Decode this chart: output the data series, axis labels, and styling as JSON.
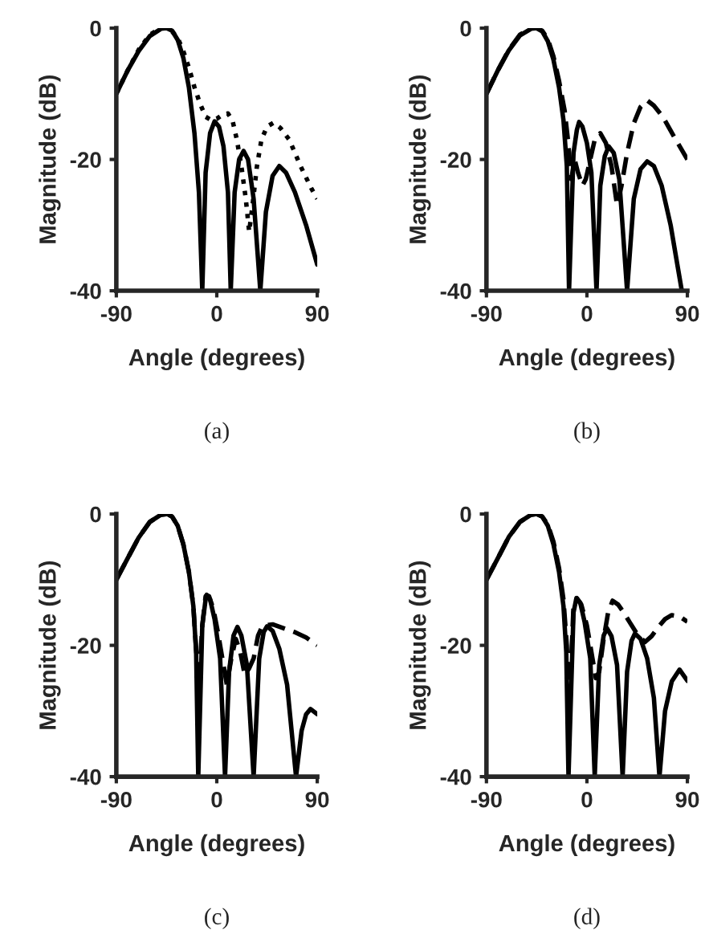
{
  "chart_data": [
    {
      "type": "line",
      "xlabel": "Angle (degrees)",
      "ylabel": "Magnitude (dB)",
      "xlim": [
        -90,
        90
      ],
      "ylim": [
        -40,
        0
      ],
      "xticks": [
        -90,
        0,
        90
      ],
      "yticks": [
        -40,
        -20,
        0
      ],
      "annotations": [
        "(a)"
      ],
      "series": [
        {
          "color": "#000000",
          "line_style": "solid",
          "x": [
            -90,
            -80,
            -70,
            -60,
            -50,
            -45,
            -40,
            -35,
            -30,
            -25,
            -20,
            -16,
            -13,
            -10,
            -6,
            -2,
            2,
            6,
            10,
            12.5,
            16,
            20,
            24,
            28,
            33,
            39,
            44,
            50,
            56,
            62,
            70,
            80,
            90
          ],
          "values": [
            -10,
            -6.5,
            -3.5,
            -1.2,
            -0.1,
            0,
            -0.4,
            -1.8,
            -4.5,
            -9,
            -16,
            -25,
            -40,
            -22,
            -16,
            -14.2,
            -15,
            -18,
            -25,
            -40,
            -25,
            -20,
            -18.7,
            -20,
            -26,
            -40,
            -28,
            -22.5,
            -21,
            -22,
            -25,
            -30,
            -36
          ]
        },
        {
          "color": "#000000",
          "line_style": "dotted",
          "x": [
            -90,
            -80,
            -70,
            -60,
            -50,
            -45,
            -40,
            -35,
            -30,
            -25,
            -20,
            -15,
            -10,
            -5,
            0,
            5,
            10,
            14,
            18,
            22,
            26,
            29,
            32,
            36,
            40,
            45,
            51,
            57,
            65,
            75,
            85,
            90
          ],
          "values": [
            -10,
            -6.5,
            -3.3,
            -1,
            0,
            0,
            -0.5,
            -1.5,
            -3.5,
            -6,
            -9,
            -11.5,
            -13.5,
            -14,
            -13.8,
            -13.2,
            -13,
            -14,
            -17,
            -21,
            -26,
            -31,
            -27,
            -21,
            -17,
            -15,
            -14.4,
            -15.2,
            -17,
            -21,
            -24.5,
            -26
          ]
        }
      ]
    },
    {
      "type": "line",
      "xlabel": "Angle (degrees)",
      "ylabel": "Magnitude (dB)",
      "xlim": [
        -90,
        90
      ],
      "ylim": [
        -40,
        0
      ],
      "xticks": [
        -90,
        0,
        90
      ],
      "yticks": [
        -40,
        -20,
        0
      ],
      "annotations": [
        "(b)"
      ],
      "series": [
        {
          "color": "#000000",
          "line_style": "solid",
          "x": [
            -90,
            -80,
            -70,
            -60,
            -50,
            -45,
            -40,
            -35,
            -30,
            -25,
            -21,
            -18,
            -16,
            -12,
            -9,
            -7,
            -4,
            0,
            4,
            8.6,
            12,
            16,
            19.5,
            24,
            29,
            36,
            42,
            48,
            54,
            60,
            67,
            75,
            80,
            85
          ],
          "values": [
            -10,
            -6.5,
            -3.4,
            -1.1,
            -0.1,
            0,
            -0.5,
            -2,
            -4.8,
            -9,
            -14,
            -21,
            -40,
            -19,
            -15.5,
            -14.3,
            -15,
            -17.5,
            -22,
            -40,
            -24,
            -19.5,
            -18,
            -19,
            -23,
            -40,
            -26,
            -21.5,
            -20.3,
            -21,
            -24,
            -30,
            -35,
            -40
          ]
        },
        {
          "color": "#000000",
          "line_style": "dashed",
          "x": [
            -90,
            -80,
            -70,
            -60,
            -50,
            -45,
            -40,
            -35,
            -30,
            -25,
            -20,
            -17,
            -14,
            -11,
            -8,
            -4,
            -1,
            3,
            7,
            12,
            17,
            22,
            27,
            31,
            36,
            42,
            48,
            54,
            60,
            68,
            78,
            90
          ],
          "values": [
            -10,
            -6.5,
            -3.3,
            -1,
            0,
            0,
            -0.4,
            -1.7,
            -4.3,
            -8,
            -12.5,
            -17,
            -23,
            -20,
            -22,
            -24,
            -23,
            -20,
            -17,
            -16,
            -17.5,
            -21,
            -27,
            -24,
            -19,
            -14.5,
            -12,
            -11,
            -11.8,
            -13.5,
            -16.5,
            -20
          ]
        }
      ]
    },
    {
      "type": "line",
      "xlabel": "Angle (degrees)",
      "ylabel": "Magnitude (dB)",
      "xlim": [
        -90,
        90
      ],
      "ylim": [
        -40,
        0
      ],
      "xticks": [
        -90,
        0,
        90
      ],
      "yticks": [
        -40,
        -20,
        0
      ],
      "annotations": [
        "(c)"
      ],
      "series": [
        {
          "color": "#000000",
          "line_style": "solid",
          "x": [
            -90,
            -80,
            -70,
            -60,
            -50,
            -44,
            -40,
            -35,
            -30,
            -25,
            -21,
            -18.5,
            -16.6,
            -13,
            -10,
            -9,
            -6,
            -2,
            3,
            7.4,
            11,
            15,
            18.5,
            22,
            27,
            33,
            38,
            42,
            45,
            50,
            56,
            63,
            71,
            76,
            80,
            84,
            90
          ],
          "values": [
            -10,
            -6.8,
            -3.6,
            -1.2,
            -0.1,
            0,
            -0.4,
            -1.8,
            -4.6,
            -8.8,
            -14,
            -21,
            -40,
            -17,
            -13,
            -12.3,
            -13,
            -16,
            -22,
            -40,
            -24,
            -18.5,
            -17.2,
            -18.5,
            -23,
            -40,
            -22,
            -18,
            -17.1,
            -17.8,
            -20.5,
            -26,
            -40,
            -33,
            -30.5,
            -29.7,
            -30.5
          ]
        },
        {
          "color": "#000000",
          "line_style": "dashed",
          "x": [
            -90,
            -80,
            -70,
            -60,
            -50,
            -44,
            -40,
            -35,
            -30,
            -25,
            -21,
            -18,
            -16,
            -13,
            -10,
            -7,
            -3,
            1,
            5,
            9,
            13,
            17,
            21,
            25,
            29,
            33,
            37,
            41,
            50,
            60,
            70,
            80,
            90
          ],
          "values": [
            -10,
            -6.8,
            -3.6,
            -1.2,
            -0.1,
            0,
            -0.4,
            -1.8,
            -4.6,
            -8.8,
            -14,
            -22,
            -26,
            -17,
            -12.5,
            -12.5,
            -14.5,
            -18,
            -22,
            -26,
            -22,
            -19,
            -21,
            -24.5,
            -23.5,
            -22,
            -18.5,
            -17,
            -16.8,
            -17.4,
            -18,
            -18.8,
            -20
          ]
        }
      ]
    },
    {
      "type": "line",
      "xlabel": "Angle (degrees)",
      "ylabel": "Magnitude (dB)",
      "xlim": [
        -90,
        90
      ],
      "ylim": [
        -40,
        0
      ],
      "xticks": [
        -90,
        0,
        90
      ],
      "yticks": [
        -40,
        -20,
        0
      ],
      "annotations": [
        "(d)"
      ],
      "series": [
        {
          "color": "#000000",
          "line_style": "solid",
          "x": [
            -90,
            -80,
            -70,
            -60,
            -50,
            -45,
            -40,
            -35,
            -30,
            -25,
            -21,
            -18.5,
            -16.5,
            -12,
            -9.4,
            -6,
            -2,
            3,
            7,
            11,
            15,
            18,
            22,
            27,
            32,
            36,
            40,
            43,
            48,
            54,
            60,
            65,
            70,
            76,
            83,
            90
          ],
          "values": [
            -10,
            -6.8,
            -3.5,
            -1.2,
            -0.1,
            0,
            -0.4,
            -1.8,
            -4.6,
            -8.8,
            -14,
            -21,
            -40,
            -15,
            -12.8,
            -13.5,
            -16.5,
            -22,
            -40,
            -23,
            -18.5,
            -17.4,
            -18.6,
            -23,
            -40,
            -24,
            -19.3,
            -18.2,
            -19,
            -22,
            -28,
            -40,
            -30,
            -25.5,
            -23.7,
            -25.4
          ]
        },
        {
          "color": "#000000",
          "line_style": "dashed",
          "x": [
            -90,
            -80,
            -70,
            -60,
            -50,
            -45,
            -40,
            -35,
            -30,
            -25,
            -21,
            -18,
            -16,
            -14,
            -12,
            -9,
            -5,
            0,
            4,
            8,
            11,
            15,
            19,
            23,
            28,
            33,
            38,
            45,
            52,
            58,
            64,
            70,
            76,
            83,
            90
          ],
          "values": [
            -10,
            -6.8,
            -3.5,
            -1.2,
            -0.1,
            0,
            -0.4,
            -1.6,
            -4.2,
            -8.2,
            -13,
            -20,
            -30,
            -22,
            -14,
            -12.8,
            -13.8,
            -17,
            -21,
            -25,
            -24,
            -19,
            -15,
            -13.2,
            -13.8,
            -15,
            -16.4,
            -18.3,
            -19.5,
            -18.6,
            -17.2,
            -16,
            -15.4,
            -15.6,
            -16.4
          ]
        }
      ]
    }
  ]
}
